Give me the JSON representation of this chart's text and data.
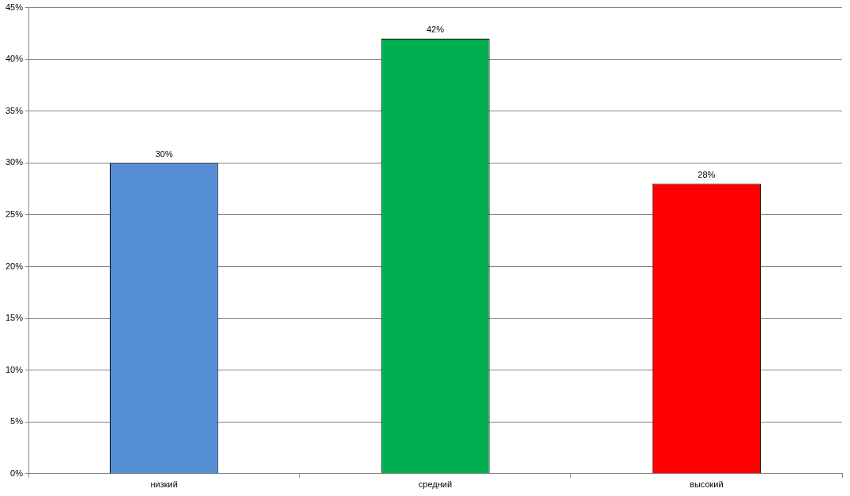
{
  "chart_data": {
    "type": "bar",
    "categories": [
      "низкий",
      "средний",
      "высокий"
    ],
    "values": [
      30,
      42,
      28
    ],
    "colors": [
      "#558ed5",
      "#00b050",
      "#ff0000"
    ],
    "value_labels": [
      "30%",
      "42%",
      "28%"
    ],
    "ylim": [
      0,
      45
    ],
    "yticks": [
      {
        "value": 0,
        "label": "0%"
      },
      {
        "value": 5,
        "label": "5%"
      },
      {
        "value": 10,
        "label": "10%"
      },
      {
        "value": 15,
        "label": "15%"
      },
      {
        "value": 20,
        "label": "20%"
      },
      {
        "value": 25,
        "label": "25%"
      },
      {
        "value": 30,
        "label": "30%"
      },
      {
        "value": 35,
        "label": "35%"
      },
      {
        "value": 40,
        "label": "40%"
      },
      {
        "value": 45,
        "label": "45%"
      }
    ],
    "grid": "y",
    "legend": false
  }
}
